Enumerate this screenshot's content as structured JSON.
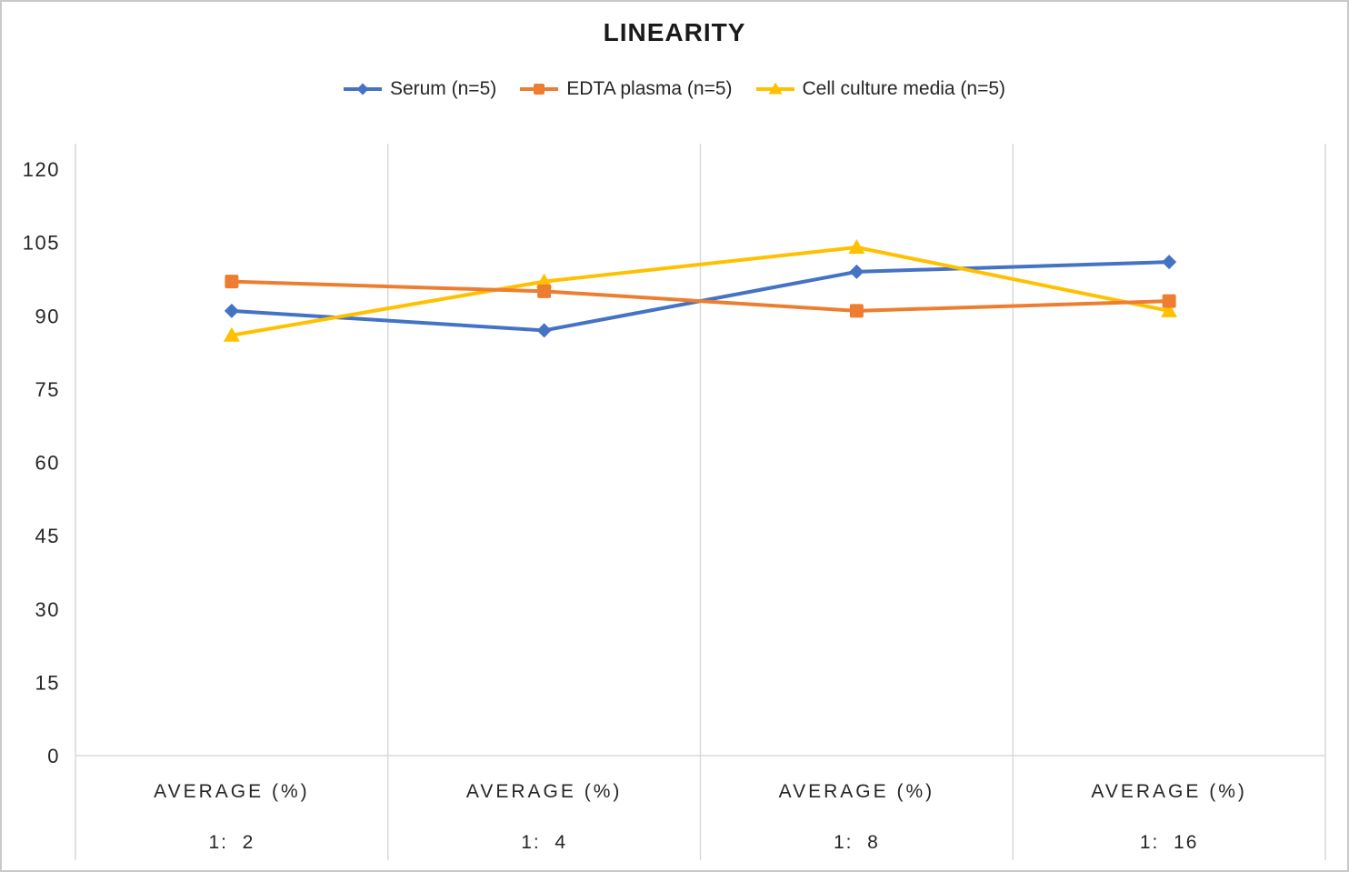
{
  "chart_data": {
    "type": "line",
    "title": "LINEARITY",
    "categories": [
      {
        "group": "AVERAGE (%)",
        "dilution": "1:  2"
      },
      {
        "group": "AVERAGE (%)",
        "dilution": "1:  4"
      },
      {
        "group": "AVERAGE (%)",
        "dilution": "1:  8"
      },
      {
        "group": "AVERAGE (%)",
        "dilution": "1:  16"
      }
    ],
    "series": [
      {
        "name": "Serum (n=5)",
        "color": "#4472C4",
        "marker": "diamond",
        "values": [
          91,
          87,
          99,
          101
        ]
      },
      {
        "name": "EDTA plasma (n=5)",
        "color": "#ED7D31",
        "marker": "square",
        "values": [
          97,
          95,
          91,
          93
        ]
      },
      {
        "name": "Cell culture media (n=5)",
        "color": "#FFC000",
        "marker": "triangle",
        "values": [
          86,
          97,
          104,
          91
        ]
      }
    ],
    "y_axis": {
      "ticks": [
        0,
        15,
        30,
        45,
        60,
        75,
        90,
        105,
        120
      ],
      "min": 0,
      "max": 125,
      "major_unit": 15
    },
    "legend_position": "top",
    "gridlines": "vertical",
    "colors": {
      "grid": "#D9D9D9",
      "text": "#262626",
      "title": "#1A1A1A",
      "frame_border": "#C9C9C9",
      "background": "#FFFFFF"
    }
  }
}
